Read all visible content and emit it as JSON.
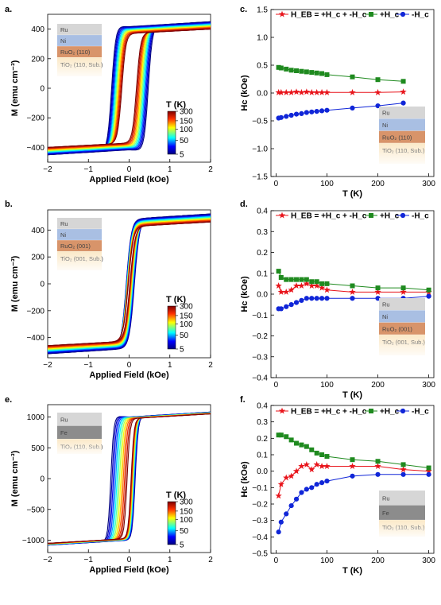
{
  "colors": {
    "red": "#e8141b",
    "green": "#1f8a1f",
    "blue": "#1026d8"
  },
  "chart_data": [
    {
      "panel_label": "a.",
      "type": "line",
      "xlabel": "Applied Field (kOe)",
      "ylabel": "M (emu cm⁻³)",
      "xlim": [
        -2,
        2
      ],
      "ylim": [
        -500,
        500
      ],
      "xticks": [
        "−2",
        "−1",
        "0",
        "1",
        "2"
      ],
      "yticks": [
        "−400",
        "−200",
        "0",
        "200",
        "400"
      ],
      "ytick_values": [
        -400,
        -200,
        0,
        200,
        400
      ],
      "colorbar": {
        "title": "T (K)",
        "ticks": [
          "300",
          "150",
          "100",
          "50",
          "5"
        ]
      },
      "loop": {
        "ms_range": [
          400,
          450
        ],
        "hc_range": [
          0.18,
          0.45
        ],
        "shift_range": [
          0.0,
          0.02
        ],
        "sharpness": 10
      },
      "layers": [
        {
          "label": "Ru",
          "color": "#d6d6d6"
        },
        {
          "label": "Ni",
          "color": "#a9bfe3"
        },
        {
          "label": "RuO₂ (110)",
          "color": "#d8946a"
        },
        {
          "label": "TiO₂ (110, Sub.)",
          "color": "#fbe9c8"
        }
      ]
    },
    {
      "panel_label": "b.",
      "type": "line",
      "xlabel": "Applied Field (kOe)",
      "ylabel": "M (emu cm⁻³)",
      "xlim": [
        -2,
        2
      ],
      "ylim": [
        -550,
        550
      ],
      "xticks": [
        "−2",
        "−1",
        "0",
        "1",
        "2"
      ],
      "yticks": [
        "−400",
        "−200",
        "0",
        "200",
        "400"
      ],
      "ytick_values": [
        -400,
        -200,
        0,
        200,
        400
      ],
      "colorbar": {
        "title": "T (K)",
        "ticks": [
          "300",
          "150",
          "100",
          "50",
          "5"
        ]
      },
      "loop": {
        "ms_range": [
          460,
          520
        ],
        "hc_range": [
          0.02,
          0.1
        ],
        "shift_range": [
          0.0,
          0.03
        ],
        "sharpness": 8
      },
      "layers": [
        {
          "label": "Ru",
          "color": "#d6d6d6"
        },
        {
          "label": "Ni",
          "color": "#a9bfe3"
        },
        {
          "label": "RuO₂ (001)",
          "color": "#d8946a"
        },
        {
          "label": "TiO₂ (001, Sub.)",
          "color": "#fbe9c8"
        }
      ]
    },
    {
      "panel_label": "e.",
      "type": "line",
      "xlabel": "Applied Field (kOe)",
      "ylabel": "M (emu cm⁻³)",
      "xlim": [
        -2,
        2
      ],
      "ylim": [
        -1200,
        1200
      ],
      "xticks": [
        "−2",
        "−1",
        "0",
        "1",
        "2"
      ],
      "yticks": [
        "−1000",
        "−500",
        "0",
        "500",
        "1000"
      ],
      "ytick_values": [
        -1000,
        -500,
        0,
        500,
        1000
      ],
      "colorbar": {
        "title": "T (K)",
        "ticks": [
          "300",
          "150",
          "100",
          "50",
          "5"
        ]
      },
      "loop": {
        "ms_range": [
          1050,
          1080
        ],
        "hc_range": [
          0.05,
          0.3
        ],
        "shift_range": [
          0.0,
          -0.15
        ],
        "sharpness": 14
      },
      "layers": [
        {
          "label": "Ru",
          "color": "#d6d6d6"
        },
        {
          "label": "Fe",
          "color": "#8c8c8c"
        },
        {
          "label": "TiO₂ (110, Sub.)",
          "color": "#fbe9c8"
        }
      ]
    },
    {
      "panel_label": "c.",
      "type": "line",
      "xlabel": "T (K)",
      "ylabel": "Hc (kOe)",
      "xlim": [
        -10,
        310
      ],
      "ylim": [
        -1.5,
        1.5
      ],
      "xticks": [
        "0",
        "100",
        "200",
        "300"
      ],
      "xtick_values": [
        0,
        100,
        200,
        300
      ],
      "yticks": [
        "−1.5",
        "−1.0",
        "−0.5",
        "0.0",
        "0.5",
        "1.0",
        "1.5"
      ],
      "ytick_values": [
        -1.5,
        -1.0,
        -0.5,
        0.0,
        0.5,
        1.0,
        1.5
      ],
      "legend": [
        "H_EB = +H_c + -H_c",
        "+H_c",
        "-H_c"
      ],
      "series": [
        {
          "name": "HEB",
          "x": [
            5,
            10,
            20,
            30,
            40,
            50,
            60,
            70,
            80,
            90,
            100,
            150,
            200,
            250
          ],
          "values": [
            0.01,
            0.01,
            0.01,
            0.01,
            0.02,
            0.01,
            0.02,
            0.01,
            0.01,
            0.01,
            0.01,
            0.01,
            0.01,
            0.02
          ]
        },
        {
          "name": "+Hc",
          "x": [
            5,
            10,
            20,
            30,
            40,
            50,
            60,
            70,
            80,
            90,
            100,
            150,
            200,
            250
          ],
          "values": [
            0.46,
            0.45,
            0.43,
            0.41,
            0.4,
            0.39,
            0.38,
            0.37,
            0.36,
            0.35,
            0.33,
            0.29,
            0.24,
            0.21
          ]
        },
        {
          "name": "-Hc",
          "x": [
            5,
            10,
            20,
            30,
            40,
            50,
            60,
            70,
            80,
            90,
            100,
            150,
            200,
            250
          ],
          "values": [
            -0.45,
            -0.44,
            -0.42,
            -0.4,
            -0.38,
            -0.37,
            -0.35,
            -0.34,
            -0.33,
            -0.32,
            -0.31,
            -0.27,
            -0.23,
            -0.18
          ]
        }
      ],
      "layers": [
        {
          "label": "Ru",
          "color": "#d6d6d6"
        },
        {
          "label": "Ni",
          "color": "#a9bfe3"
        },
        {
          "label": "RuO₂ (110)",
          "color": "#d8946a"
        },
        {
          "label": "TiO₂ (110, Sub.)",
          "color": "#fbe9c8"
        }
      ]
    },
    {
      "panel_label": "d.",
      "type": "line",
      "xlabel": "T (K)",
      "ylabel": "Hc (kOe)",
      "xlim": [
        -10,
        310
      ],
      "ylim": [
        -0.4,
        0.4
      ],
      "xticks": [
        "0",
        "100",
        "200",
        "300"
      ],
      "xtick_values": [
        0,
        100,
        200,
        300
      ],
      "yticks": [
        "−0.4",
        "−0.3",
        "−0.2",
        "−0.1",
        "0.0",
        "0.1",
        "0.2",
        "0.3",
        "0.4"
      ],
      "ytick_values": [
        -0.4,
        -0.3,
        -0.2,
        -0.1,
        0.0,
        0.1,
        0.2,
        0.3,
        0.4
      ],
      "legend": [
        "H_EB = +H_c + -H_c",
        "+H_c",
        "-H_c"
      ],
      "series": [
        {
          "name": "HEB",
          "x": [
            5,
            10,
            20,
            30,
            40,
            50,
            60,
            70,
            80,
            90,
            100,
            150,
            200,
            250,
            300
          ],
          "values": [
            0.04,
            0.01,
            0.01,
            0.02,
            0.04,
            0.04,
            0.05,
            0.04,
            0.04,
            0.03,
            0.02,
            0.01,
            0.01,
            0.01,
            0.01
          ]
        },
        {
          "name": "+Hc",
          "x": [
            5,
            10,
            20,
            30,
            40,
            50,
            60,
            70,
            80,
            90,
            100,
            150,
            200,
            250,
            300
          ],
          "values": [
            0.11,
            0.08,
            0.07,
            0.07,
            0.07,
            0.07,
            0.07,
            0.06,
            0.06,
            0.05,
            0.05,
            0.04,
            0.03,
            0.03,
            0.02
          ]
        },
        {
          "name": "-Hc",
          "x": [
            5,
            10,
            20,
            30,
            40,
            50,
            60,
            70,
            80,
            90,
            100,
            150,
            200,
            250,
            300
          ],
          "values": [
            -0.07,
            -0.07,
            -0.06,
            -0.05,
            -0.04,
            -0.03,
            -0.02,
            -0.02,
            -0.02,
            -0.02,
            -0.02,
            -0.02,
            -0.02,
            -0.02,
            -0.01
          ]
        }
      ],
      "layers": [
        {
          "label": "Ru",
          "color": "#d6d6d6"
        },
        {
          "label": "Ni",
          "color": "#a9bfe3"
        },
        {
          "label": "RuO₂ (001)",
          "color": "#d8946a"
        },
        {
          "label": "TiO₂ (001, Sub.)",
          "color": "#fbe9c8"
        }
      ]
    },
    {
      "panel_label": "f.",
      "type": "line",
      "xlabel": "T (K)",
      "ylabel": "Hc (kOe)",
      "xlim": [
        -10,
        310
      ],
      "ylim": [
        -0.5,
        0.4
      ],
      "xticks": [
        "0",
        "100",
        "200",
        "300"
      ],
      "xtick_values": [
        0,
        100,
        200,
        300
      ],
      "yticks": [
        "−0.5",
        "−0.4",
        "−0.3",
        "−0.2",
        "−0.1",
        "0.0",
        "0.1",
        "0.2",
        "0.3",
        "0.4"
      ],
      "ytick_values": [
        -0.5,
        -0.4,
        -0.3,
        -0.2,
        -0.1,
        0.0,
        0.1,
        0.2,
        0.3,
        0.4
      ],
      "legend": [
        "H_EB = +H_c + -H_c",
        "+H_c",
        "-H_c"
      ],
      "series": [
        {
          "name": "HEB",
          "x": [
            5,
            10,
            20,
            30,
            40,
            50,
            60,
            70,
            80,
            90,
            100,
            150,
            200,
            250,
            300
          ],
          "values": [
            -0.15,
            -0.08,
            -0.04,
            -0.03,
            0.0,
            0.03,
            0.04,
            0.01,
            0.04,
            0.03,
            0.03,
            0.03,
            0.03,
            0.01,
            0.0
          ]
        },
        {
          "name": "+Hc",
          "x": [
            5,
            10,
            20,
            30,
            40,
            50,
            60,
            70,
            80,
            90,
            100,
            150,
            200,
            250,
            300
          ],
          "values": [
            0.22,
            0.22,
            0.21,
            0.19,
            0.17,
            0.16,
            0.15,
            0.13,
            0.11,
            0.1,
            0.09,
            0.07,
            0.06,
            0.04,
            0.02
          ]
        },
        {
          "name": "-Hc",
          "x": [
            5,
            10,
            20,
            30,
            40,
            50,
            60,
            70,
            80,
            90,
            100,
            150,
            200,
            250,
            300
          ],
          "values": [
            -0.37,
            -0.31,
            -0.26,
            -0.21,
            -0.17,
            -0.13,
            -0.11,
            -0.1,
            -0.08,
            -0.07,
            -0.06,
            -0.03,
            -0.02,
            -0.02,
            -0.02
          ]
        }
      ],
      "layers": [
        {
          "label": "Ru",
          "color": "#d6d6d6"
        },
        {
          "label": "Fe",
          "color": "#8c8c8c"
        },
        {
          "label": "TiO₂ (110, Sub.)",
          "color": "#fbe9c8"
        }
      ]
    }
  ]
}
